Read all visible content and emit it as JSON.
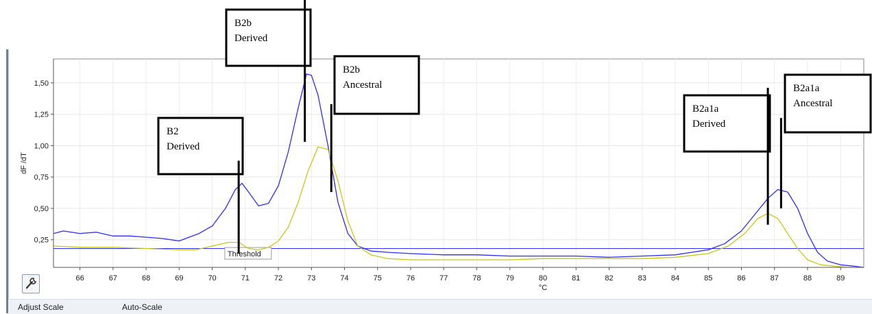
{
  "chart_data": {
    "type": "line",
    "title": "",
    "xlabel": "°C",
    "ylabel": "dF /dT",
    "xlim": [
      65.2,
      89.7
    ],
    "ylim": [
      0.03,
      1.69
    ],
    "x_ticks": [
      66,
      67,
      68,
      69,
      70,
      71,
      72,
      73,
      74,
      75,
      76,
      77,
      78,
      79,
      80,
      81,
      82,
      83,
      84,
      85,
      86,
      87,
      88,
      89
    ],
    "y_ticks": [
      {
        "value": 0.25,
        "label": "0,25"
      },
      {
        "value": 0.5,
        "label": "0,50"
      },
      {
        "value": 0.75,
        "label": "0,75"
      },
      {
        "value": 1.0,
        "label": "1,00"
      },
      {
        "value": 1.25,
        "label": "1,25"
      },
      {
        "value": 1.5,
        "label": "1,50"
      }
    ],
    "grid": true,
    "threshold": {
      "value": 0.18,
      "label": "Threshold"
    },
    "series": [
      {
        "color": "#2b2bff",
        "x": [
          65.2,
          65.5,
          66.0,
          66.5,
          67.0,
          67.5,
          68.0,
          68.5,
          69.0,
          69.3,
          69.6,
          70.0,
          70.4,
          70.7,
          70.9,
          71.1,
          71.4,
          71.7,
          72.0,
          72.3,
          72.6,
          72.85,
          73.0,
          73.2,
          73.5,
          73.8,
          74.1,
          74.4,
          74.8,
          75.3,
          76.0,
          77.0,
          78.0,
          79.0,
          80.0,
          81.0,
          82.0,
          83.0,
          84.0,
          84.5,
          85.0,
          85.5,
          86.0,
          86.4,
          86.8,
          87.1,
          87.4,
          87.7,
          88.0,
          88.3,
          88.6,
          89.0,
          89.4,
          89.7
        ],
        "y": [
          0.3,
          0.32,
          0.3,
          0.31,
          0.28,
          0.28,
          0.27,
          0.26,
          0.24,
          0.27,
          0.3,
          0.36,
          0.5,
          0.65,
          0.7,
          0.63,
          0.52,
          0.54,
          0.68,
          0.95,
          1.3,
          1.57,
          1.56,
          1.4,
          1.0,
          0.55,
          0.3,
          0.2,
          0.16,
          0.15,
          0.14,
          0.13,
          0.13,
          0.12,
          0.12,
          0.12,
          0.11,
          0.12,
          0.13,
          0.15,
          0.17,
          0.22,
          0.32,
          0.45,
          0.58,
          0.65,
          0.63,
          0.5,
          0.3,
          0.15,
          0.08,
          0.05,
          0.04,
          0.03
        ]
      },
      {
        "color": "#c8c814",
        "x": [
          65.2,
          66.0,
          67.0,
          68.0,
          69.0,
          69.5,
          70.0,
          70.5,
          70.8,
          71.1,
          71.4,
          71.7,
          72.0,
          72.3,
          72.6,
          72.9,
          73.2,
          73.5,
          73.8,
          74.1,
          74.4,
          74.8,
          75.3,
          76.0,
          77.0,
          78.0,
          79.0,
          80.0,
          81.0,
          82.0,
          83.0,
          84.0,
          85.0,
          85.6,
          86.1,
          86.5,
          86.8,
          87.1,
          87.4,
          87.7,
          88.0,
          88.4,
          88.8,
          89.2,
          89.7
        ],
        "y": [
          0.2,
          0.19,
          0.19,
          0.18,
          0.17,
          0.17,
          0.2,
          0.23,
          0.23,
          0.18,
          0.17,
          0.19,
          0.24,
          0.35,
          0.55,
          0.8,
          0.99,
          0.97,
          0.72,
          0.4,
          0.2,
          0.13,
          0.1,
          0.09,
          0.09,
          0.09,
          0.09,
          0.1,
          0.1,
          0.1,
          0.1,
          0.11,
          0.14,
          0.2,
          0.3,
          0.42,
          0.46,
          0.42,
          0.3,
          0.18,
          0.09,
          0.05,
          0.04,
          0.03,
          0.03
        ]
      }
    ],
    "annotations": [
      {
        "lines": [
          "B2",
          "Derived"
        ],
        "pointer_x": 70.8,
        "pointer_y_top": 0.88,
        "pointer_y_bottom": 0.14
      },
      {
        "lines": [
          "B2b",
          "Derived"
        ],
        "pointer_x": 72.8,
        "pointer_y_top": 2.3,
        "pointer_y_bottom": 1.03
      },
      {
        "lines": [
          "B2b",
          "Ancestral"
        ],
        "pointer_x": 73.6,
        "pointer_y_top": 1.33,
        "pointer_y_bottom": 0.63
      },
      {
        "lines": [
          "B2a1a",
          "Derived"
        ],
        "pointer_x": 86.8,
        "pointer_y_top": 1.46,
        "pointer_y_bottom": 0.37
      },
      {
        "lines": [
          "B2a1a",
          "Ancestral"
        ],
        "pointer_x": 87.2,
        "pointer_y_top": 1.22,
        "pointer_y_bottom": 0.5
      }
    ]
  },
  "toolbar": {
    "adjust_scale_label": "Adjust Scale",
    "auto_scale_label": "Auto-Scale",
    "settings_icon": "wrench-icon"
  }
}
